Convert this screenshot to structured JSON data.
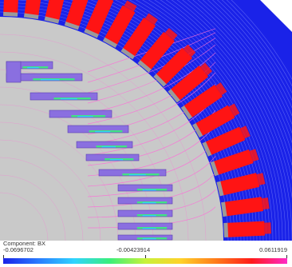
{
  "scene": {
    "type": "finite-element field plot",
    "description_colors": {
      "background_field": "#1a22e8",
      "stator_iron": "#c8c8c8",
      "coils": "#ff1414",
      "rotor_bars": "#8a6fe0",
      "field_lines": "#ff6ad8"
    }
  },
  "legend": {
    "title": "Component: BX",
    "min_label": "-0.0696702",
    "mid_label": "-0.00423914",
    "max_label": "0.0611919",
    "gradient": [
      "#1a22e8",
      "#2a7cff",
      "#2fd4ff",
      "#3aef7a",
      "#c8f23a",
      "#ffd22a",
      "#ff7a1a",
      "#ff1a1a",
      "#ff2ac8"
    ]
  }
}
